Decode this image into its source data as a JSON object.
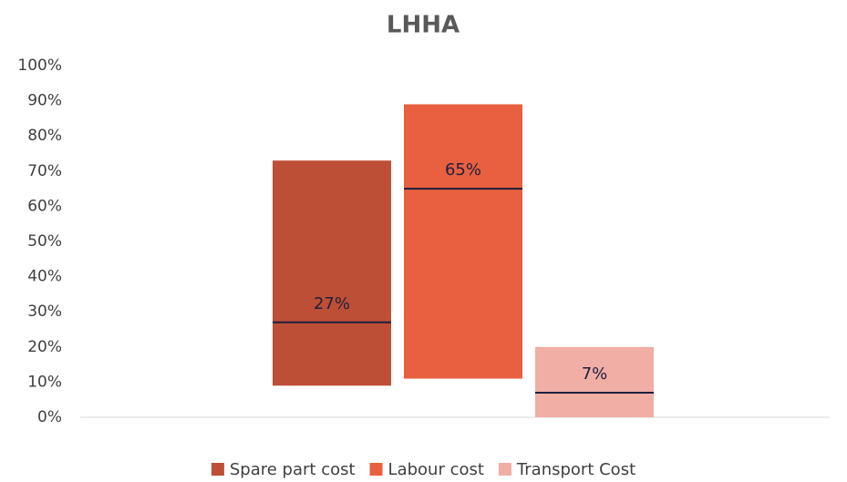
{
  "chart_data": {
    "type": "floating_bar",
    "title": "LHHA",
    "series": [
      {
        "name": "Spare part cost",
        "color": "#bd4f36",
        "range": [
          9,
          73
        ],
        "value": 27,
        "value_label": "27%"
      },
      {
        "name": "Labour cost",
        "color": "#e8603f",
        "range": [
          11,
          89
        ],
        "value": 65,
        "value_label": "65%"
      },
      {
        "name": "Transport Cost",
        "color": "#f0aea5",
        "range": [
          0,
          20
        ],
        "value": 7,
        "value_label": "7%"
      }
    ],
    "ylim": [
      0,
      100
    ],
    "yticks": [
      {
        "value": 0,
        "label": "0%"
      },
      {
        "value": 10,
        "label": "10%"
      },
      {
        "value": 20,
        "label": "20%"
      },
      {
        "value": 30,
        "label": "30%"
      },
      {
        "value": 40,
        "label": "40%"
      },
      {
        "value": 50,
        "label": "50%"
      },
      {
        "value": 60,
        "label": "60%"
      },
      {
        "value": 70,
        "label": "70%"
      },
      {
        "value": 80,
        "label": "80%"
      },
      {
        "value": 90,
        "label": "90%"
      },
      {
        "value": 100,
        "label": "100%"
      }
    ],
    "grid": false,
    "legend": "bottom"
  }
}
